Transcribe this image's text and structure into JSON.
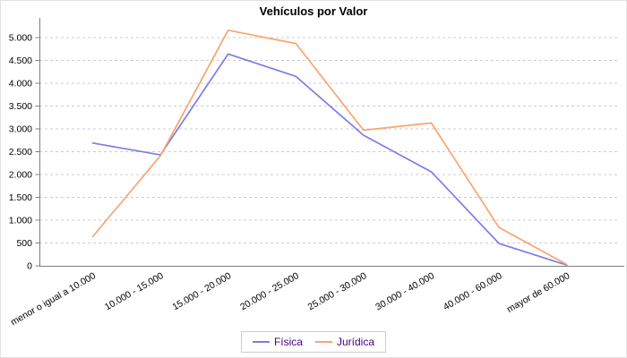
{
  "chart_data": {
    "type": "line",
    "title": "Vehículos por Valor",
    "categories": [
      "menor o igual a 10.000",
      "10.000 - 15.000",
      "15.000 - 20.000",
      "20.000 - 25.000",
      "25.000 - 30.000",
      "30.000 - 40.000",
      "40.000 - 60.000",
      "mayor de 60.000"
    ],
    "series": [
      {
        "name": "Física",
        "color": "#7c7ce8",
        "values": [
          2690,
          2430,
          4640,
          4150,
          2860,
          2060,
          490,
          15
        ]
      },
      {
        "name": "Jurídica",
        "color": "#f9a470",
        "values": [
          640,
          2410,
          5160,
          4870,
          2970,
          3130,
          840,
          30
        ]
      }
    ],
    "xlabel": "",
    "ylabel": "",
    "ylim": [
      0,
      5300
    ],
    "ytick_step": 500,
    "ytick_labels": [
      "0",
      "500",
      "1.000",
      "1.500",
      "2.000",
      "2.500",
      "3.000",
      "3.500",
      "4.000",
      "4.500",
      "5.000"
    ],
    "grid": "horizontal-dashed",
    "legend_position": "bottom-center",
    "colors": {
      "axis": "#808080",
      "grid": "#cccccc",
      "tick_text": "#000000",
      "title_text": "#000000",
      "legend_text": "#4b0082",
      "legend_border": "#cccccc",
      "background": "#ffffff"
    }
  }
}
